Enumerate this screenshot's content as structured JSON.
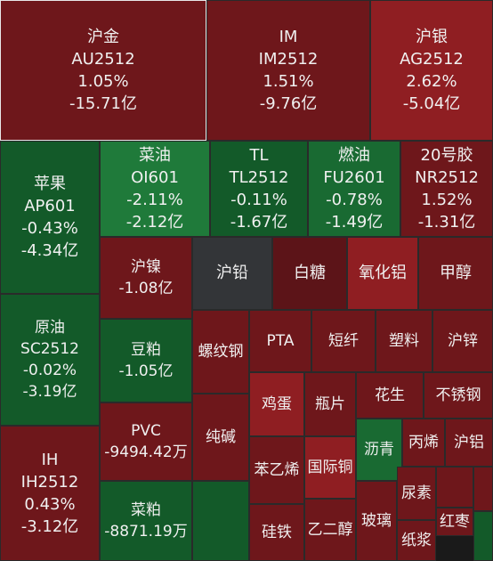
{
  "chart_data": {
    "type": "treemap",
    "colors": {
      "red_light": "#a8262a",
      "red_mid": "#8f1e22",
      "red_dark": "#6e171b",
      "red_deep": "#5c1418",
      "green_light": "#1f7a3a",
      "green_mid": "#196a32",
      "green_dark": "#135a29",
      "gray": "#333538"
    },
    "items": [
      {
        "name": "沪金",
        "code": "AU2512",
        "change": "1.05%",
        "flow": "-15.71亿",
        "color": "red_dark",
        "selected": true
      },
      {
        "name": "IM",
        "code": "IM2512",
        "change": "1.51%",
        "flow": "-9.76亿",
        "color": "red_dark"
      },
      {
        "name": "沪银",
        "code": "AG2512",
        "change": "2.62%",
        "flow": "-5.04亿",
        "color": "red_mid"
      },
      {
        "name": "苹果",
        "code": "AP601",
        "change": "-0.43%",
        "flow": "-4.34亿",
        "color": "green_dark"
      },
      {
        "name": "菜油",
        "code": "OI601",
        "change": "-2.11%",
        "flow": "-2.12亿",
        "color": "green_light"
      },
      {
        "name": "TL",
        "code": "TL2512",
        "change": "-0.11%",
        "flow": "-1.67亿",
        "color": "green_dark"
      },
      {
        "name": "燃油",
        "code": "FU2601",
        "change": "-0.78%",
        "flow": "-1.49亿",
        "color": "green_mid"
      },
      {
        "name": "20号胶",
        "code": "NR2512",
        "change": "1.52%",
        "flow": "-1.31亿",
        "color": "red_dark"
      },
      {
        "name": "沪镍",
        "flow": "-1.08亿",
        "color": "red_dark"
      },
      {
        "name": "沪铅",
        "color": "gray"
      },
      {
        "name": "白糖",
        "color": "red_deep"
      },
      {
        "name": "氧化铝",
        "color": "red_mid"
      },
      {
        "name": "甲醇",
        "color": "red_dark"
      },
      {
        "name": "原油",
        "code": "SC2512",
        "change": "-0.02%",
        "flow": "-3.19亿",
        "color": "green_dark"
      },
      {
        "name": "豆粕",
        "flow": "-1.05亿",
        "color": "green_dark"
      },
      {
        "name": "螺纹钢",
        "color": "red_dark"
      },
      {
        "name": "PTA",
        "color": "red_dark"
      },
      {
        "name": "短纤",
        "color": "red_dark"
      },
      {
        "name": "塑料",
        "color": "red_dark"
      },
      {
        "name": "沪锌",
        "color": "red_dark"
      },
      {
        "name": "鸡蛋",
        "color": "red_mid"
      },
      {
        "name": "瓶片",
        "color": "red_dark"
      },
      {
        "name": "花生",
        "color": "red_dark"
      },
      {
        "name": "不锈钢",
        "color": "red_dark"
      },
      {
        "name": "PVC",
        "flow": "-9494.42万",
        "color": "red_dark"
      },
      {
        "name": "纯碱",
        "color": "red_dark"
      },
      {
        "name": "沥青",
        "color": "green_mid"
      },
      {
        "name": "丙烯",
        "color": "red_dark"
      },
      {
        "name": "沪铝",
        "color": "red_dark"
      },
      {
        "name": "苯乙烯",
        "color": "red_dark"
      },
      {
        "name": "国际铜",
        "color": "red_mid"
      },
      {
        "name": "尿素",
        "color": "red_dark"
      },
      {
        "name": "IH",
        "code": "IH2512",
        "change": "0.43%",
        "flow": "-3.12亿",
        "color": "red_dark"
      },
      {
        "name": "菜粕",
        "flow": "-8871.19万",
        "color": "green_dark"
      },
      {
        "name": "",
        "color": "green_dark"
      },
      {
        "name": "硅铁",
        "color": "red_dark"
      },
      {
        "name": "乙二醇",
        "color": "red_dark"
      },
      {
        "name": "玻璃",
        "color": "red_dark"
      },
      {
        "name": "纸浆",
        "color": "red_dark"
      },
      {
        "name": "红枣",
        "color": "red_dark"
      },
      {
        "name": "",
        "color": "red_dark"
      },
      {
        "name": "",
        "color": "red_dark"
      },
      {
        "name": "",
        "color": "green_dark"
      }
    ]
  }
}
